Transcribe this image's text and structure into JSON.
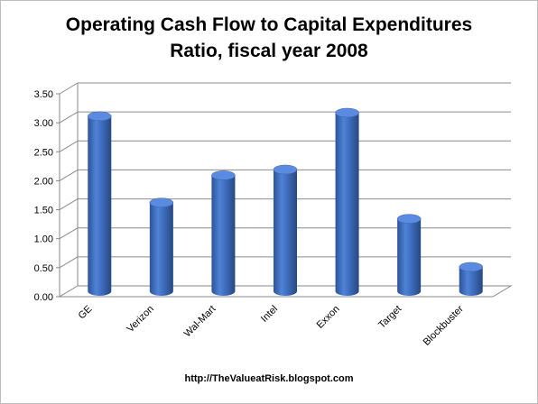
{
  "chart_data": {
    "type": "bar",
    "title_lines": [
      "Operating Cash Flow to Capital Expenditures",
      "Ratio, fiscal year 2008"
    ],
    "categories": [
      "GE",
      "Verizon",
      "Wal-Mart",
      "Intel",
      "Exxon",
      "Target",
      "Blockbuster"
    ],
    "values": [
      3.02,
      1.53,
      2.0,
      2.1,
      3.08,
      1.25,
      0.42
    ],
    "ylim": [
      0,
      3.5
    ],
    "yticks": [
      "0.00",
      "0.50",
      "1.00",
      "1.50",
      "2.00",
      "2.50",
      "3.00",
      "3.50"
    ],
    "grid": true,
    "bar_color": "#3f6fc0",
    "bar_top_color": "#5b8be0",
    "bar_shadow_color": "#2a4f8f"
  },
  "footer": "http://TheValueatRisk.blogspot.com"
}
